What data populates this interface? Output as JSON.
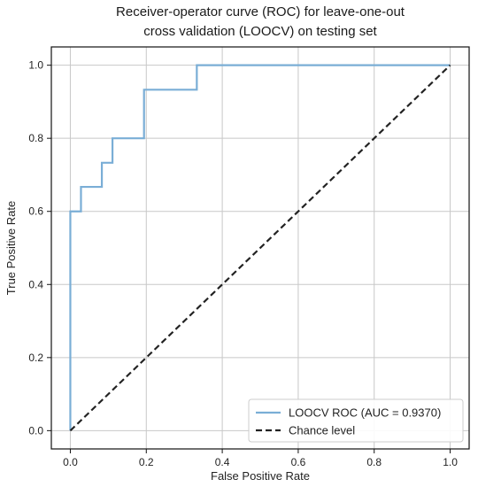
{
  "chart_data": {
    "type": "line",
    "title_lines": [
      "Receiver-operator curve (ROC) for leave-one-out",
      "cross validation (LOOCV) on testing set"
    ],
    "xlabel": "False Positive Rate",
    "ylabel": "True Positive Rate",
    "xlim": [
      -0.05,
      1.05
    ],
    "ylim": [
      -0.05,
      1.05
    ],
    "xticks": [
      0.0,
      0.2,
      0.4,
      0.6,
      0.8,
      1.0
    ],
    "xtick_labels": [
      "0.0",
      "0.2",
      "0.4",
      "0.6",
      "0.8",
      "1.0"
    ],
    "yticks": [
      0.0,
      0.2,
      0.4,
      0.6,
      0.8,
      1.0
    ],
    "ytick_labels": [
      "0.0",
      "0.2",
      "0.4",
      "0.6",
      "0.8",
      "1.0"
    ],
    "grid": true,
    "legend_position": "lower-right",
    "series": [
      {
        "name": "LOOCV ROC (AUC = 0.9370)",
        "color": "#7aaed6",
        "style": "solid",
        "x": [
          0.0,
          0.0,
          0.0,
          0.028,
          0.028,
          0.083,
          0.083,
          0.111,
          0.111,
          0.194,
          0.194,
          0.333,
          0.333,
          1.0
        ],
        "y": [
          0.0,
          0.6,
          0.6,
          0.6,
          0.667,
          0.667,
          0.733,
          0.733,
          0.8,
          0.8,
          0.933,
          0.933,
          1.0,
          1.0
        ]
      },
      {
        "name": "Chance level",
        "color": "#222222",
        "style": "dashed",
        "x": [
          0.0,
          1.0
        ],
        "y": [
          0.0,
          1.0
        ]
      }
    ]
  }
}
